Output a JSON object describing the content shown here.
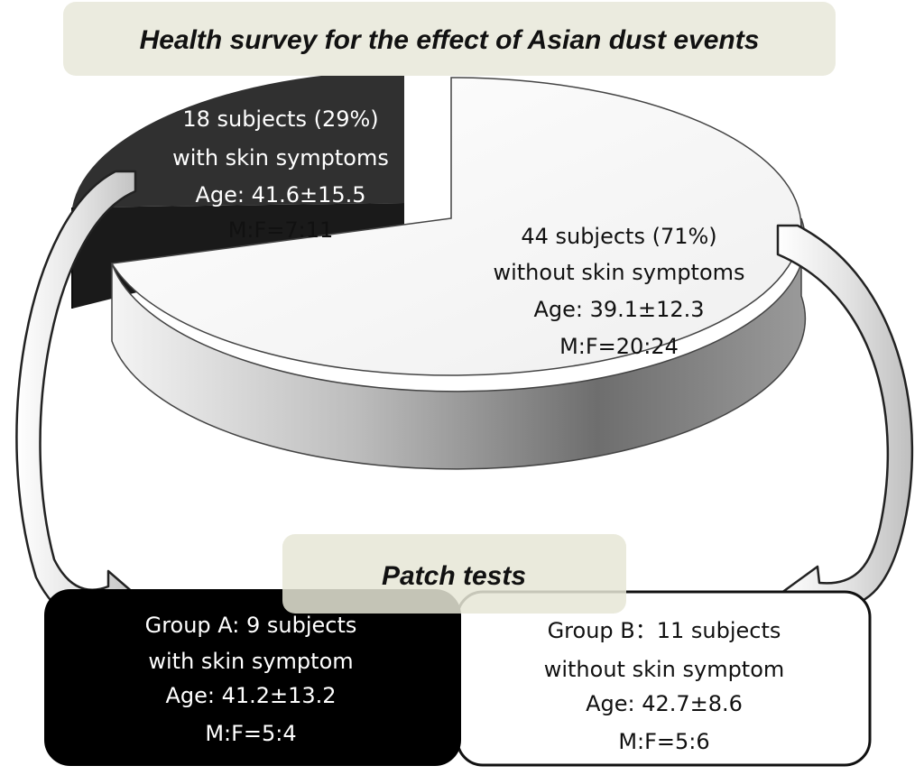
{
  "title": "Health survey for the effect of Asian dust events",
  "chart_data": {
    "type": "pie",
    "title": "Health survey for the effect of Asian dust events",
    "slices": [
      {
        "label": "with skin symptoms",
        "percent": 29,
        "color": "#2b2b2b",
        "text": [
          "18 subjects (29%)",
          "with skin symptoms",
          "Age: 41.6±15.5",
          "M:F=7:11"
        ]
      },
      {
        "label": "without skin symptoms",
        "percent": 71,
        "color": "#f5f5f5",
        "text": [
          "44 subjects (71%)",
          "without skin symptoms",
          "Age: 39.1±12.3",
          "M:F=20:24"
        ]
      }
    ]
  },
  "patch_tests": {
    "label": "Patch tests",
    "group_a": {
      "lines": [
        "Group A: 9 subjects",
        "with skin symptom",
        "Age: 41.2±13.2",
        "M:F=5:4"
      ],
      "color": "#000000"
    },
    "group_b": {
      "lines": [
        "Group B：11 subjects",
        "without skin symptom",
        "Age: 42.7±8.6",
        "M:F=5:6"
      ],
      "color": "#ffffff"
    }
  }
}
